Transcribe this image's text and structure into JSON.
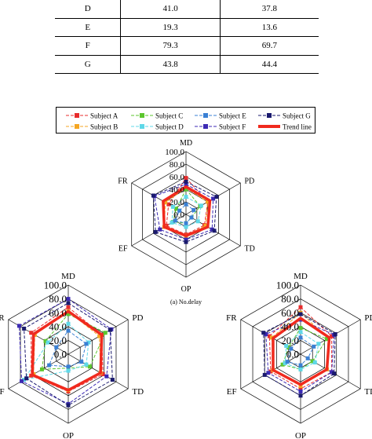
{
  "table": {
    "rows": [
      {
        "subject": "D",
        "v1": "41.0",
        "v2": "37.8"
      },
      {
        "subject": "E",
        "v1": "19.3",
        "v2": "13.6"
      },
      {
        "subject": "F",
        "v1": "79.3",
        "v2": "69.7"
      },
      {
        "subject": "G",
        "v1": "43.8",
        "v2": "44.4"
      }
    ]
  },
  "chart_data": [
    {
      "type": "radar",
      "title": "",
      "caption": "(a) No.delay",
      "axes": [
        "MD",
        "PD",
        "TD",
        "OP",
        "EF",
        "FR"
      ],
      "ticks": [
        "0.0",
        "20.0",
        "40.0",
        "60.0",
        "80.0",
        "100.0"
      ],
      "rlim": [
        0,
        100
      ],
      "series": [
        {
          "name": "Subject A",
          "values": [
            58,
            40,
            34,
            32,
            36,
            32
          ]
        },
        {
          "name": "Subject B",
          "values": [
            42,
            40,
            36,
            34,
            40,
            38
          ]
        },
        {
          "name": "Subject C",
          "values": [
            40,
            26,
            10,
            14,
            24,
            18
          ]
        },
        {
          "name": "Subject D",
          "values": [
            28,
            28,
            22,
            20,
            26,
            24
          ]
        },
        {
          "name": "Subject E",
          "values": [
            16,
            14,
            10,
            14,
            20,
            12
          ]
        },
        {
          "name": "Subject F",
          "values": [
            48,
            50,
            48,
            40,
            48,
            58
          ]
        },
        {
          "name": "Subject G",
          "values": [
            52,
            56,
            52,
            44,
            56,
            60
          ]
        },
        {
          "name": "Trend line",
          "values": [
            44,
            44,
            40,
            34,
            40,
            42
          ]
        }
      ]
    },
    {
      "type": "radar",
      "title": "",
      "axes": [
        "MD",
        "PD",
        "TD",
        "OP",
        "EF",
        "FR"
      ],
      "ticks": [
        "0.0",
        "20.0",
        "40.0",
        "60.0",
        "80.0",
        "100.0"
      ],
      "rlim": [
        0,
        100
      ],
      "series": [
        {
          "name": "Subject A",
          "values": [
            68,
            56,
            58,
            54,
            62,
            62
          ]
        },
        {
          "name": "Subject B",
          "values": [
            62,
            52,
            54,
            52,
            58,
            56
          ]
        },
        {
          "name": "Subject C",
          "values": [
            58,
            62,
            36,
            20,
            44,
            38
          ]
        },
        {
          "name": "Subject D",
          "values": [
            44,
            34,
            30,
            24,
            74,
            34
          ]
        },
        {
          "name": "Subject E",
          "values": [
            34,
            30,
            22,
            18,
            32,
            20
          ]
        },
        {
          "name": "Subject F",
          "values": [
            80,
            72,
            64,
            72,
            78,
            82
          ]
        },
        {
          "name": "Subject G",
          "values": [
            74,
            70,
            74,
            74,
            70,
            74
          ]
        },
        {
          "name": "Trend line",
          "values": [
            62,
            56,
            54,
            52,
            60,
            58
          ]
        }
      ]
    },
    {
      "type": "radar",
      "title": "",
      "axes": [
        "MD",
        "PD",
        "TD",
        "OP",
        "EF",
        "FR"
      ],
      "ticks": [
        "0.0",
        "20.0",
        "40.0",
        "60.0",
        "80.0",
        "100.0"
      ],
      "rlim": [
        0,
        100
      ],
      "series": [
        {
          "name": "Subject A",
          "values": [
            68,
            52,
            52,
            50,
            50,
            52
          ]
        },
        {
          "name": "Subject B",
          "values": [
            60,
            46,
            44,
            46,
            46,
            48
          ]
        },
        {
          "name": "Subject C",
          "values": [
            38,
            44,
            20,
            22,
            30,
            20
          ]
        },
        {
          "name": "Subject D",
          "values": [
            32,
            30,
            24,
            22,
            26,
            24
          ]
        },
        {
          "name": "Subject E",
          "values": [
            24,
            22,
            12,
            16,
            22,
            16
          ]
        },
        {
          "name": "Subject F",
          "values": [
            50,
            56,
            52,
            54,
            54,
            58
          ]
        },
        {
          "name": "Subject G",
          "values": [
            58,
            58,
            56,
            60,
            60,
            62
          ]
        },
        {
          "name": "Trend line",
          "values": [
            52,
            48,
            44,
            44,
            46,
            46
          ]
        }
      ]
    }
  ],
  "legend": [
    {
      "name": "Subject A",
      "color": "#e82c2c",
      "dash": "4,2",
      "marker": "square",
      "width": 1
    },
    {
      "name": "Subject C",
      "color": "#5cc62e",
      "dash": "4,2",
      "marker": "square",
      "width": 1
    },
    {
      "name": "Subject E",
      "color": "#3a80d4",
      "dash": "4,2",
      "marker": "square",
      "width": 1
    },
    {
      "name": "Subject G",
      "color": "#1a1a6e",
      "dash": "4,2",
      "marker": "square",
      "width": 1
    },
    {
      "name": "Subject B",
      "color": "#f5a623",
      "dash": "4,2",
      "marker": "square",
      "width": 1
    },
    {
      "name": "Subject D",
      "color": "#5fd8e8",
      "dash": "4,2",
      "marker": "square",
      "width": 1
    },
    {
      "name": "Subject F",
      "color": "#3c2ab4",
      "dash": "4,2",
      "marker": "square",
      "width": 1
    },
    {
      "name": "Trend line",
      "color": "#f02a1e",
      "dash": "",
      "marker": "none",
      "width": 4
    }
  ]
}
